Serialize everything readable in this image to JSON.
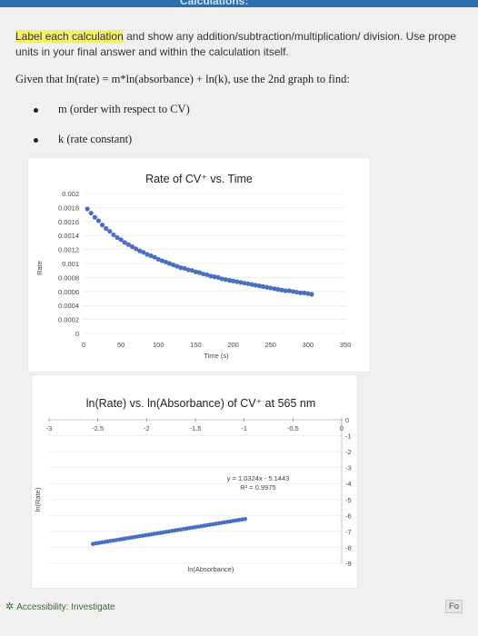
{
  "header": {
    "title": "Calculations:"
  },
  "instructions": {
    "highlight": "Label each calculation",
    "rest": " and show any addition/subtraction/multiplication/ division. Use prope",
    "line2": "units in your final answer and within the calculation itself."
  },
  "given": "Given that ln(rate) = m*ln(absorbance) + ln(k), use the 2nd graph to find:",
  "bullets": [
    "m (order with respect to CV)",
    "k (rate constant)"
  ],
  "chart_data": [
    {
      "type": "scatter",
      "title": "Rate of CV⁺ vs. Time",
      "xlabel": "Time (s)",
      "ylabel": "Rate",
      "xlim": [
        0,
        350
      ],
      "ylim": [
        0,
        0.002
      ],
      "x_ticks": [
        "0",
        "50",
        "100",
        "150",
        "200",
        "250",
        "300",
        "350"
      ],
      "y_ticks": [
        "0",
        "0.0002",
        "0.0004",
        "0.0006",
        "0.0008",
        "0.001",
        "0.0012",
        "0.0014",
        "0.0016",
        "0.0018",
        "0.002"
      ],
      "grid": true,
      "marker_color": "#4a6fc0",
      "x": [
        5,
        10,
        15,
        20,
        25,
        30,
        35,
        40,
        45,
        50,
        55,
        60,
        65,
        70,
        75,
        80,
        85,
        90,
        95,
        100,
        105,
        110,
        115,
        120,
        125,
        130,
        135,
        140,
        145,
        150,
        155,
        160,
        165,
        170,
        175,
        180,
        185,
        190,
        195,
        200,
        205,
        210,
        215,
        220,
        225,
        230,
        235,
        240,
        245,
        250,
        255,
        260,
        265,
        270,
        275,
        280,
        285,
        290,
        295,
        300,
        305
      ],
      "y": [
        0.00178,
        0.00172,
        0.00166,
        0.00161,
        0.00155,
        0.0015,
        0.00146,
        0.00141,
        0.00137,
        0.00134,
        0.0013,
        0.00127,
        0.00124,
        0.00121,
        0.00118,
        0.00116,
        0.00113,
        0.00111,
        0.00109,
        0.00106,
        0.00104,
        0.00102,
        0.001,
        0.00098,
        0.00096,
        0.00094,
        0.00093,
        0.00091,
        0.0009,
        0.00088,
        0.00087,
        0.00085,
        0.00084,
        0.00082,
        0.00081,
        0.0008,
        0.00078,
        0.00077,
        0.00076,
        0.00075,
        0.00074,
        0.00073,
        0.00072,
        0.00071,
        0.0007,
        0.00069,
        0.00068,
        0.00067,
        0.00066,
        0.00065,
        0.00064,
        0.00063,
        0.00062,
        0.00061,
        0.00061,
        0.0006,
        0.00059,
        0.00058,
        0.00058,
        0.00057,
        0.00056
      ]
    },
    {
      "type": "scatter",
      "title": "ln(Rate) vs. ln(Absorbance) of CV⁺ at 565 nm",
      "xlabel": "ln(Absorbance)",
      "ylabel": "ln(Rate)",
      "xlim": [
        -3,
        0
      ],
      "ylim": [
        -9,
        0
      ],
      "x_ticks": [
        "-3",
        "-2.5",
        "-2",
        "-1.5",
        "-1",
        "-0.5",
        "0"
      ],
      "y_ticks": [
        "0",
        "-1",
        "-2",
        "-3",
        "-4",
        "-5",
        "-6",
        "-7",
        "-8",
        "-9"
      ],
      "grid": true,
      "marker_color": "#4a6fc0",
      "trendline": {
        "equation": "y = 1.0324x - 5.1443",
        "r2": "R² = 0.9975"
      },
      "x": [
        -2.55,
        -2.52,
        -2.49,
        -2.46,
        -2.43,
        -2.4,
        -2.37,
        -2.34,
        -2.31,
        -2.28,
        -2.25,
        -2.22,
        -2.19,
        -2.16,
        -2.13,
        -2.1,
        -2.07,
        -2.04,
        -2.01,
        -1.98,
        -1.95,
        -1.92,
        -1.89,
        -1.86,
        -1.83,
        -1.8,
        -1.77,
        -1.74,
        -1.71,
        -1.68,
        -1.65,
        -1.62,
        -1.59,
        -1.56,
        -1.53,
        -1.5,
        -1.47,
        -1.44,
        -1.41,
        -1.38,
        -1.35,
        -1.32,
        -1.29,
        -1.26,
        -1.23,
        -1.2,
        -1.17,
        -1.14,
        -1.11,
        -1.08,
        -1.05,
        -1.02,
        -0.99
      ],
      "y": [
        -7.78,
        -7.75,
        -7.72,
        -7.69,
        -7.66,
        -7.63,
        -7.6,
        -7.57,
        -7.54,
        -7.51,
        -7.48,
        -7.45,
        -7.42,
        -7.39,
        -7.36,
        -7.33,
        -7.3,
        -7.27,
        -7.24,
        -7.21,
        -7.18,
        -7.15,
        -7.12,
        -7.09,
        -7.06,
        -7.03,
        -7.0,
        -6.97,
        -6.94,
        -6.91,
        -6.88,
        -6.85,
        -6.82,
        -6.79,
        -6.76,
        -6.73,
        -6.7,
        -6.67,
        -6.64,
        -6.61,
        -6.58,
        -6.55,
        -6.52,
        -6.49,
        -6.46,
        -6.43,
        -6.4,
        -6.37,
        -6.34,
        -6.31,
        -6.28,
        -6.25,
        -6.22
      ]
    }
  ],
  "footer": {
    "accessibility": "Accessibility: Investigate",
    "focus": "Fo"
  }
}
